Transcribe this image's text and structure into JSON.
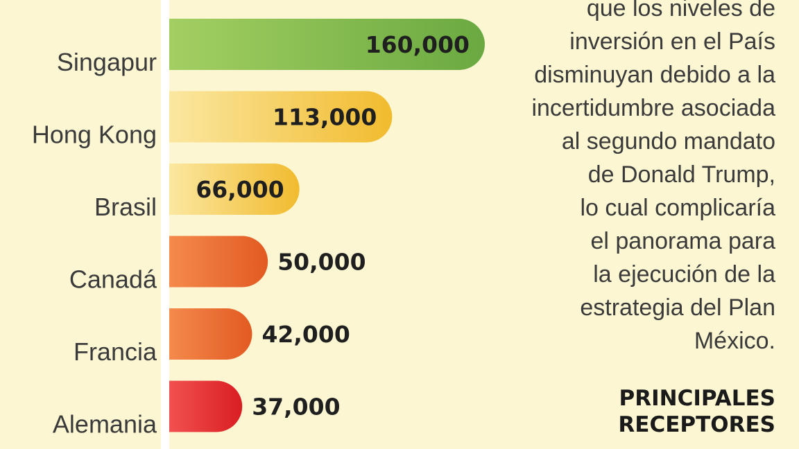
{
  "colors": {
    "background": "#fcf7d2",
    "axis_band": "#ffffff",
    "green": [
      "#a3cf62",
      "#6aa941"
    ],
    "yellow": [
      "#fbe7a0",
      "#f1bb2e"
    ],
    "orange": [
      "#f48a4c",
      "#e25a22"
    ],
    "red": [
      "#f25050",
      "#d91e22"
    ]
  },
  "chart_data": {
    "type": "bar",
    "orientation": "horizontal",
    "categories": [
      "Singapur",
      "Hong Kong",
      "Brasil",
      "Canadá",
      "Francia",
      "Alemania"
    ],
    "values": [
      160000,
      113000,
      66000,
      50000,
      42000,
      37000
    ],
    "value_labels": [
      "160,000",
      "113,000",
      "66,000",
      "50,000",
      "42,000",
      "37,000"
    ],
    "bar_colors": [
      "green",
      "yellow",
      "yellow",
      "orange",
      "orange",
      "red"
    ],
    "grid": false,
    "legend": "none"
  },
  "article": {
    "lines": [
      "que los niveles de",
      "inversión en el País",
      "disminuyan debido a la",
      "incertidumbre asociada",
      "al segundo mandato",
      "de Donald Trump,",
      "lo cual complicaría",
      "el panorama para",
      "la ejecución de la",
      "estrategia del Plan",
      "México."
    ]
  },
  "section_title": {
    "lines": [
      "PRINCIPALES",
      "RECEPTORES"
    ]
  }
}
